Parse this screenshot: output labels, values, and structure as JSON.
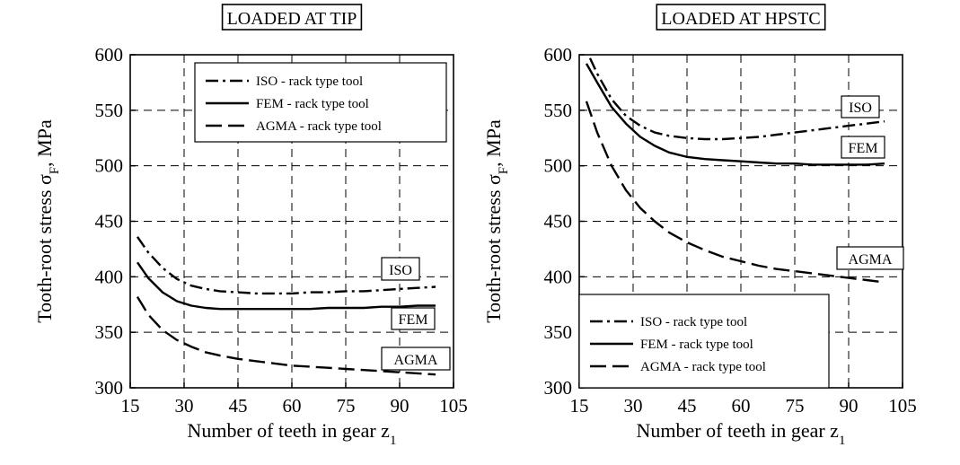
{
  "chart_data": [
    {
      "type": "line",
      "title": "LOADED AT TIP",
      "xlabel": "Number of teeth in gear z",
      "xlabel_sub": "1",
      "ylabel": "Tooth-root stress σ",
      "ylabel_sub": "F",
      "ylabel_unit": ", MPa",
      "xlim": [
        15,
        105
      ],
      "ylim": [
        300,
        600
      ],
      "xticks": [
        15,
        30,
        45,
        60,
        75,
        90,
        105
      ],
      "yticks": [
        300,
        350,
        400,
        450,
        500,
        550,
        600
      ],
      "grid": true,
      "legend_position": "top-right",
      "series": [
        {
          "name": "ISO - rack type tool",
          "style": "dashdot",
          "label": "ISO",
          "x": [
            17,
            20,
            24,
            28,
            32,
            36,
            40,
            45,
            50,
            55,
            60,
            65,
            70,
            75,
            80,
            85,
            90,
            95,
            100
          ],
          "y": [
            436,
            422,
            408,
            398,
            392,
            389,
            387,
            386,
            385,
            385,
            385,
            386,
            386,
            387,
            387,
            388,
            389,
            390,
            391
          ]
        },
        {
          "name": "FEM - rack type tool",
          "style": "solid",
          "label": "FEM",
          "x": [
            17,
            20,
            24,
            28,
            32,
            36,
            40,
            45,
            50,
            55,
            60,
            65,
            70,
            75,
            80,
            85,
            90,
            95,
            100
          ],
          "y": [
            413,
            399,
            386,
            378,
            374,
            372,
            371,
            371,
            371,
            371,
            371,
            371,
            372,
            372,
            372,
            373,
            373,
            374,
            374
          ]
        },
        {
          "name": "AGMA - rack type tool",
          "style": "dashed",
          "label": "AGMA",
          "x": [
            17,
            20,
            24,
            28,
            32,
            36,
            40,
            45,
            50,
            55,
            60,
            65,
            70,
            75,
            80,
            85,
            90,
            95,
            100
          ],
          "y": [
            382,
            366,
            352,
            343,
            337,
            332,
            329,
            326,
            324,
            322,
            320,
            319,
            318,
            317,
            316,
            315,
            314,
            313,
            312
          ]
        }
      ]
    },
    {
      "type": "line",
      "title": "LOADED AT HPSTC",
      "xlabel": "Number of teeth in gear z",
      "xlabel_sub": "1",
      "ylabel": "Tooth-root stress σ",
      "ylabel_sub": "F",
      "ylabel_unit": ", MPa",
      "xlim": [
        15,
        105
      ],
      "ylim": [
        300,
        600
      ],
      "xticks": [
        15,
        30,
        45,
        60,
        75,
        90,
        105
      ],
      "yticks": [
        300,
        350,
        400,
        450,
        500,
        550,
        600
      ],
      "grid": true,
      "legend_position": "bottom-left",
      "series": [
        {
          "name": "ISO - rack type tool",
          "style": "dashdot",
          "label": "ISO",
          "x": [
            18,
            20,
            24,
            28,
            32,
            36,
            40,
            45,
            50,
            55,
            60,
            65,
            70,
            75,
            80,
            85,
            90,
            95,
            100
          ],
          "y": [
            597,
            583,
            560,
            545,
            536,
            530,
            527,
            525,
            524,
            524,
            525,
            526,
            528,
            530,
            532,
            534,
            536,
            538,
            540
          ]
        },
        {
          "name": "FEM - rack type tool",
          "style": "solid",
          "label": "FEM",
          "x": [
            17,
            20,
            24,
            28,
            32,
            36,
            40,
            45,
            50,
            55,
            60,
            65,
            70,
            75,
            80,
            85,
            90,
            95,
            100
          ],
          "y": [
            592,
            575,
            553,
            538,
            526,
            518,
            512,
            508,
            506,
            505,
            504,
            503,
            502,
            502,
            501,
            501,
            501,
            501,
            502
          ]
        },
        {
          "name": "AGMA - rack type tool",
          "style": "dashed",
          "label": "AGMA",
          "x": [
            17,
            20,
            24,
            28,
            32,
            36,
            40,
            45,
            50,
            55,
            60,
            65,
            70,
            75,
            80,
            85,
            90,
            95,
            100
          ],
          "y": [
            558,
            530,
            500,
            478,
            462,
            450,
            440,
            431,
            424,
            418,
            414,
            410,
            407,
            405,
            403,
            401,
            399,
            397,
            395
          ]
        }
      ]
    }
  ]
}
